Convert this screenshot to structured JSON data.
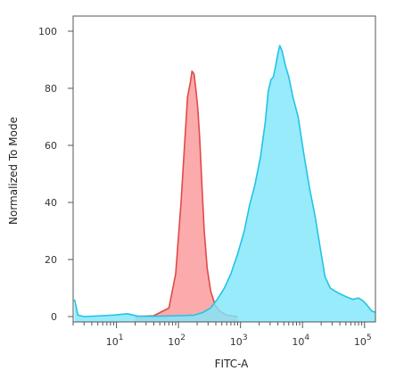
{
  "chart_data": {
    "type": "area",
    "xlabel": "FITC-A",
    "ylabel": "Normalized To Mode",
    "x_scale": "log",
    "xlim": [
      2,
      150000
    ],
    "ylim": [
      0,
      100
    ],
    "grid": false,
    "legend": "none",
    "x_ticks": [
      {
        "value": 10,
        "base": "10",
        "exp": "1"
      },
      {
        "value": 100,
        "base": "10",
        "exp": "2"
      },
      {
        "value": 1000,
        "base": "10",
        "exp": "3"
      },
      {
        "value": 10000,
        "base": "10",
        "exp": "4"
      },
      {
        "value": 100000,
        "base": "10",
        "exp": "5"
      }
    ],
    "y_ticks": [
      "0",
      "20",
      "40",
      "60",
      "80",
      "100"
    ],
    "series": [
      {
        "fill": "#fa9c9c",
        "stroke": "#e34848",
        "opacity": 0.85,
        "points": [
          [
            20,
            0
          ],
          [
            40,
            0.3
          ],
          [
            70,
            3
          ],
          [
            90,
            15
          ],
          [
            110,
            40
          ],
          [
            125,
            60
          ],
          [
            140,
            77
          ],
          [
            155,
            82
          ],
          [
            165,
            86
          ],
          [
            178,
            85
          ],
          [
            190,
            80
          ],
          [
            205,
            73
          ],
          [
            220,
            62
          ],
          [
            240,
            45
          ],
          [
            260,
            30
          ],
          [
            290,
            17
          ],
          [
            330,
            9
          ],
          [
            390,
            4
          ],
          [
            460,
            2
          ],
          [
            600,
            0.5
          ],
          [
            900,
            0
          ]
        ]
      },
      {
        "fill": "#80e6fa",
        "stroke": "#23c3e6",
        "opacity": 0.82,
        "points": [
          [
            2.1,
            6
          ],
          [
            2.4,
            0.5
          ],
          [
            3,
            0
          ],
          [
            6,
            0.3
          ],
          [
            10,
            0.6
          ],
          [
            15,
            1
          ],
          [
            22,
            0.2
          ],
          [
            40,
            0.1
          ],
          [
            100,
            0.3
          ],
          [
            180,
            0.5
          ],
          [
            250,
            1.5
          ],
          [
            330,
            3
          ],
          [
            420,
            6
          ],
          [
            550,
            10
          ],
          [
            700,
            15
          ],
          [
            900,
            22
          ],
          [
            1150,
            30
          ],
          [
            1400,
            39
          ],
          [
            1700,
            46
          ],
          [
            2100,
            56
          ],
          [
            2500,
            68
          ],
          [
            2800,
            79
          ],
          [
            3100,
            83
          ],
          [
            3400,
            84
          ],
          [
            3700,
            88
          ],
          [
            4000,
            92
          ],
          [
            4300,
            95
          ],
          [
            4700,
            93
          ],
          [
            5300,
            88
          ],
          [
            6000,
            84
          ],
          [
            7000,
            77
          ],
          [
            8500,
            70
          ],
          [
            10500,
            57
          ],
          [
            13000,
            45
          ],
          [
            16000,
            35
          ],
          [
            19000,
            25
          ],
          [
            23000,
            14
          ],
          [
            28000,
            10
          ],
          [
            33000,
            9
          ],
          [
            40000,
            8
          ],
          [
            50000,
            7
          ],
          [
            65000,
            6
          ],
          [
            80000,
            6.5
          ],
          [
            95000,
            5.5
          ],
          [
            110000,
            4
          ],
          [
            130000,
            2
          ],
          [
            150000,
            1.5
          ]
        ]
      }
    ]
  }
}
